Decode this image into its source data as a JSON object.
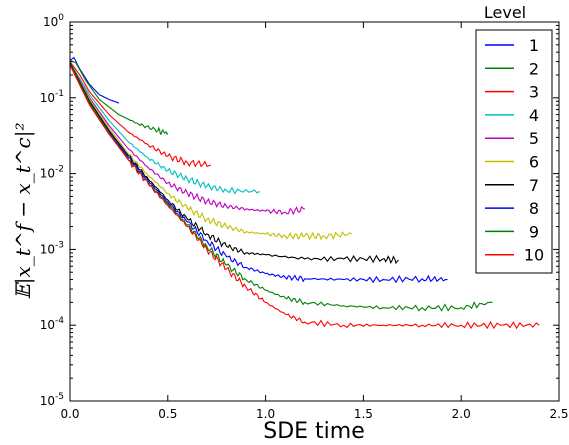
{
  "chart_data": {
    "type": "line",
    "title": "",
    "xlabel": "SDE time",
    "ylabel": "𝔼|x_t^f − x_t^c|²",
    "yscale": "log",
    "xlim": [
      0.0,
      2.5
    ],
    "ylim": [
      1e-05,
      1.0
    ],
    "xticks": [
      "0.0",
      "0.5",
      "1.0",
      "1.5",
      "2.0",
      "2.5"
    ],
    "yticks": [
      {
        "base": "10",
        "exp": "0"
      },
      {
        "base": "10",
        "exp": "-1"
      },
      {
        "base": "10",
        "exp": "-2"
      },
      {
        "base": "10",
        "exp": "-3"
      },
      {
        "base": "10",
        "exp": "-4"
      },
      {
        "base": "10",
        "exp": "-5"
      }
    ],
    "grid": false,
    "legend": {
      "title": "Level",
      "placement": "top-right"
    },
    "series": [
      {
        "name": "1",
        "color": "#0000ff",
        "x": [
          0.0,
          0.02,
          0.05,
          0.1,
          0.15,
          0.2,
          0.25
        ],
        "y": [
          0.31,
          0.34,
          0.24,
          0.15,
          0.11,
          0.095,
          0.085
        ]
      },
      {
        "name": "2",
        "color": "#008000",
        "x": [
          0.0,
          0.03,
          0.08,
          0.15,
          0.25,
          0.35,
          0.45,
          0.5
        ],
        "y": [
          0.31,
          0.29,
          0.17,
          0.095,
          0.06,
          0.045,
          0.037,
          0.034
        ]
      },
      {
        "name": "3",
        "color": "#ff0000",
        "x": [
          0.0,
          0.05,
          0.1,
          0.2,
          0.3,
          0.4,
          0.5,
          0.6,
          0.72
        ],
        "y": [
          0.3,
          0.2,
          0.12,
          0.06,
          0.035,
          0.024,
          0.017,
          0.014,
          0.013
        ]
      },
      {
        "name": "4",
        "color": "#00bfbf",
        "x": [
          0.0,
          0.1,
          0.2,
          0.3,
          0.4,
          0.5,
          0.6,
          0.7,
          0.8,
          0.97
        ],
        "y": [
          0.29,
          0.11,
          0.05,
          0.026,
          0.016,
          0.011,
          0.0085,
          0.0068,
          0.006,
          0.0058
        ]
      },
      {
        "name": "5",
        "color": "#bf00bf",
        "x": [
          0.0,
          0.1,
          0.2,
          0.3,
          0.4,
          0.5,
          0.6,
          0.7,
          0.8,
          0.9,
          1.0,
          1.1,
          1.2
        ],
        "y": [
          0.29,
          0.1,
          0.043,
          0.021,
          0.012,
          0.0075,
          0.0055,
          0.0043,
          0.0037,
          0.0034,
          0.0032,
          0.0031,
          0.0034
        ]
      },
      {
        "name": "6",
        "color": "#bfbf00",
        "x": [
          0.0,
          0.1,
          0.2,
          0.3,
          0.4,
          0.5,
          0.6,
          0.7,
          0.8,
          0.9,
          1.0,
          1.1,
          1.2,
          1.3,
          1.44
        ],
        "y": [
          0.29,
          0.095,
          0.04,
          0.018,
          0.0095,
          0.0055,
          0.0035,
          0.0025,
          0.002,
          0.0017,
          0.0016,
          0.0015,
          0.0015,
          0.0015,
          0.0016
        ]
      },
      {
        "name": "7",
        "color": "#000000",
        "x": [
          0.0,
          0.1,
          0.2,
          0.3,
          0.4,
          0.5,
          0.6,
          0.7,
          0.8,
          0.9,
          1.0,
          1.2,
          1.4,
          1.6,
          1.68
        ],
        "y": [
          0.29,
          0.09,
          0.037,
          0.017,
          0.0085,
          0.0045,
          0.0025,
          0.0016,
          0.0011,
          0.0009,
          0.00085,
          0.00075,
          0.00075,
          0.00075,
          0.00072
        ]
      },
      {
        "name": "8",
        "color": "#0000ff",
        "x": [
          0.0,
          0.1,
          0.2,
          0.3,
          0.4,
          0.5,
          0.6,
          0.7,
          0.8,
          0.9,
          1.0,
          1.1,
          1.2,
          1.4,
          1.6,
          1.8,
          1.93
        ],
        "y": [
          0.28,
          0.085,
          0.035,
          0.016,
          0.008,
          0.0042,
          0.0023,
          0.0013,
          0.0008,
          0.00058,
          0.00048,
          0.00043,
          0.00041,
          0.0004,
          0.0004,
          0.00041,
          0.0004
        ]
      },
      {
        "name": "9",
        "color": "#008000",
        "x": [
          0.0,
          0.1,
          0.2,
          0.3,
          0.4,
          0.5,
          0.6,
          0.7,
          0.8,
          0.9,
          1.0,
          1.1,
          1.2,
          1.4,
          1.6,
          1.8,
          2.0,
          2.16
        ],
        "y": [
          0.28,
          0.085,
          0.034,
          0.015,
          0.0075,
          0.004,
          0.0021,
          0.0011,
          0.00062,
          0.0004,
          0.00029,
          0.00023,
          0.0002,
          0.00018,
          0.00017,
          0.00017,
          0.00017,
          0.0002
        ]
      },
      {
        "name": "10",
        "color": "#ff0000",
        "x": [
          0.0,
          0.1,
          0.2,
          0.3,
          0.4,
          0.5,
          0.6,
          0.7,
          0.8,
          0.9,
          1.0,
          1.1,
          1.2,
          1.4,
          1.6,
          1.8,
          2.0,
          2.2,
          2.4
        ],
        "y": [
          0.27,
          0.08,
          0.033,
          0.015,
          0.0073,
          0.0038,
          0.002,
          0.001,
          0.00055,
          0.00032,
          0.0002,
          0.00014,
          0.00011,
          0.0001,
          0.0001,
          0.0001,
          0.0001,
          0.0001,
          0.0001
        ]
      }
    ]
  }
}
